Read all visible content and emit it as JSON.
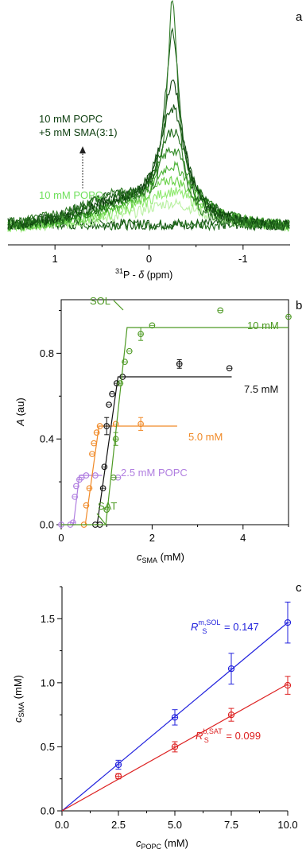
{
  "panel_labels": [
    "a",
    "b",
    "c"
  ],
  "chart_data": [
    {
      "type": "line",
      "panel": "a",
      "xlabel_sup": "31",
      "xlabel_main": "P - ",
      "xlabel_delta": "δ",
      "xlabel_unit": " (ppm)",
      "xlim": [
        1.5,
        -1.5
      ],
      "xticks": [
        {
          "v": 1,
          "label": "1"
        },
        {
          "v": 0,
          "label": "0"
        },
        {
          "v": -1,
          "label": "-1"
        }
      ],
      "legend_top_line1": "10 mM POPC",
      "legend_top_line2": "+5 mM SMA(3:1)",
      "legend_bottom": "10 mM POPC",
      "series": [
        {
          "color": "#b8f0a0",
          "amp": 0.11,
          "w": 0.42
        },
        {
          "color": "#90ea70",
          "amp": 0.16,
          "w": 0.38
        },
        {
          "color": "#6ad24a",
          "amp": 0.21,
          "w": 0.34
        },
        {
          "color": "#46b030",
          "amp": 0.27,
          "w": 0.3
        },
        {
          "color": "#2e8a22",
          "amp": 0.34,
          "w": 0.26
        },
        {
          "color": "#1e6a18",
          "amp": 0.42,
          "w": 0.22
        },
        {
          "color": "#145212",
          "amp": 0.52,
          "w": 0.18
        },
        {
          "color": "#0d3f0d",
          "amp": 0.64,
          "w": 0.14
        },
        {
          "color": "#1a5c18",
          "amp": 0.86,
          "w": 0.1
        },
        {
          "color": "#2f7a26",
          "amp": 1.0,
          "w": 0.07
        }
      ],
      "baseline_series": [
        {
          "color": "#145212",
          "amp": 0.41,
          "w": 0.3
        },
        {
          "color": "#1e6a18",
          "amp": 0.38,
          "w": 0.32
        }
      ]
    },
    {
      "type": "scatter",
      "panel": "b",
      "xlabel_main": "c",
      "xlabel_sub": "SMA",
      "xlabel_unit": " (mM)",
      "ylabel": "A (au)",
      "ylabel_main": "A",
      "ylabel_unit": " (au)",
      "xlim": [
        0,
        5
      ],
      "ylim": [
        0,
        1.05
      ],
      "xticks": [
        {
          "v": 0,
          "label": "0"
        },
        {
          "v": 2,
          "label": "2"
        },
        {
          "v": 4,
          "label": "4"
        }
      ],
      "yticks": [
        {
          "v": 0,
          "label": "0.0"
        },
        {
          "v": 0.4,
          "label": "0.4"
        },
        {
          "v": 0.8,
          "label": "0.8"
        }
      ],
      "annotations": {
        "sol": "SOL",
        "sat": "SAT"
      },
      "series": [
        {
          "name": "2.5 mM POPC",
          "color": "#b07ee0",
          "fit_x": [
            0,
            0.27,
            0.4,
            0.9
          ],
          "fit_y": [
            0,
            0,
            0.23,
            0.23
          ],
          "points": [
            {
              "x": 0.0,
              "y": 0.0
            },
            {
              "x": 0.2,
              "y": 0.0
            },
            {
              "x": 0.26,
              "y": 0.01
            },
            {
              "x": 0.3,
              "y": 0.13
            },
            {
              "x": 0.33,
              "y": 0.18
            },
            {
              "x": 0.4,
              "y": 0.21
            },
            {
              "x": 0.45,
              "y": 0.22
            },
            {
              "x": 0.55,
              "y": 0.23
            },
            {
              "x": 0.75,
              "y": 0.23
            },
            {
              "x": 1.25,
              "y": 0.22
            }
          ]
        },
        {
          "name": "5.0 mM",
          "color": "#f08a28",
          "fit_x": [
            0.5,
            0.53,
            0.83,
            2.55
          ],
          "fit_y": [
            0,
            0,
            0.46,
            0.46
          ],
          "points": [
            {
              "x": 0.5,
              "y": 0.0
            },
            {
              "x": 0.55,
              "y": 0.09
            },
            {
              "x": 0.62,
              "y": 0.17
            },
            {
              "x": 0.68,
              "y": 0.33
            },
            {
              "x": 0.72,
              "y": 0.38
            },
            {
              "x": 0.78,
              "y": 0.43
            },
            {
              "x": 0.85,
              "y": 0.46
            },
            {
              "x": 1.2,
              "y": 0.47
            },
            {
              "x": 1.75,
              "y": 0.47,
              "err": 0.03
            }
          ]
        },
        {
          "name": "7.5 mM",
          "color": "#111111",
          "fit_x": [
            0.75,
            0.79,
            1.25,
            3.75
          ],
          "fit_y": [
            0,
            0,
            0.69,
            0.69
          ],
          "points": [
            {
              "x": 0.75,
              "y": 0.0
            },
            {
              "x": 0.85,
              "y": 0.0
            },
            {
              "x": 0.92,
              "y": 0.17
            },
            {
              "x": 0.95,
              "y": 0.27
            },
            {
              "x": 1.0,
              "y": 0.46,
              "err": 0.04
            },
            {
              "x": 1.05,
              "y": 0.56
            },
            {
              "x": 1.12,
              "y": 0.61
            },
            {
              "x": 1.22,
              "y": 0.66
            },
            {
              "x": 1.35,
              "y": 0.69
            },
            {
              "x": 2.6,
              "y": 0.75,
              "err": 0.02
            },
            {
              "x": 3.7,
              "y": 0.73
            }
          ]
        },
        {
          "name": "10 mM",
          "color": "#4e9a24",
          "fit_x": [
            0,
            0.98,
            1.45,
            5.0
          ],
          "fit_y": [
            0,
            0,
            0.92,
            0.92
          ],
          "points": [
            {
              "x": 1.0,
              "y": 0.07
            },
            {
              "x": 1.15,
              "y": 0.22
            },
            {
              "x": 1.2,
              "y": 0.4,
              "err": 0.03
            },
            {
              "x": 1.3,
              "y": 0.66
            },
            {
              "x": 1.4,
              "y": 0.76
            },
            {
              "x": 1.5,
              "y": 0.81
            },
            {
              "x": 1.75,
              "y": 0.89,
              "err": 0.03
            },
            {
              "x": 2.0,
              "y": 0.93
            },
            {
              "x": 3.5,
              "y": 1.0
            },
            {
              "x": 5.0,
              "y": 0.97
            }
          ]
        }
      ]
    },
    {
      "type": "scatter",
      "panel": "c",
      "xlabel_main": "c",
      "xlabel_sub": "POPC",
      "xlabel_unit": " (mM)",
      "ylabel_main": "c",
      "ylabel_sub": "SMA",
      "ylabel_unit": " (mM)",
      "xlim": [
        0,
        10
      ],
      "ylim": [
        0,
        1.75
      ],
      "xticks": [
        {
          "v": 0,
          "label": "0.0"
        },
        {
          "v": 2.5,
          "label": "2.5"
        },
        {
          "v": 5,
          "label": "5.0"
        },
        {
          "v": 7.5,
          "label": "7.5"
        },
        {
          "v": 10,
          "label": "10.0"
        }
      ],
      "yticks": [
        {
          "v": 0,
          "label": "0.0"
        },
        {
          "v": 0.5,
          "label": "0.5"
        },
        {
          "v": 1.0,
          "label": "1.0"
        },
        {
          "v": 1.5,
          "label": "1.5"
        }
      ],
      "series": [
        {
          "name": "SOL",
          "color": "#2222dd",
          "label_main": "R",
          "label_sub": "S",
          "label_sup": "m,SOL",
          "label_value": " = 0.147",
          "slope": 0.147,
          "points": [
            {
              "x": 2.5,
              "y": 0.36,
              "err": 0.035
            },
            {
              "x": 5.0,
              "y": 0.73,
              "err": 0.06
            },
            {
              "x": 7.5,
              "y": 1.11,
              "err": 0.12
            },
            {
              "x": 10.0,
              "y": 1.47,
              "err": 0.16
            }
          ]
        },
        {
          "name": "SAT",
          "color": "#dd2222",
          "label_main": "R",
          "label_sub": "S",
          "label_sup": "b,SAT",
          "label_value": " = 0.099",
          "slope": 0.099,
          "points": [
            {
              "x": 2.5,
              "y": 0.27,
              "err": 0.02
            },
            {
              "x": 5.0,
              "y": 0.5,
              "err": 0.04
            },
            {
              "x": 7.5,
              "y": 0.75,
              "err": 0.05
            },
            {
              "x": 10.0,
              "y": 0.98,
              "err": 0.07
            }
          ]
        }
      ]
    }
  ]
}
